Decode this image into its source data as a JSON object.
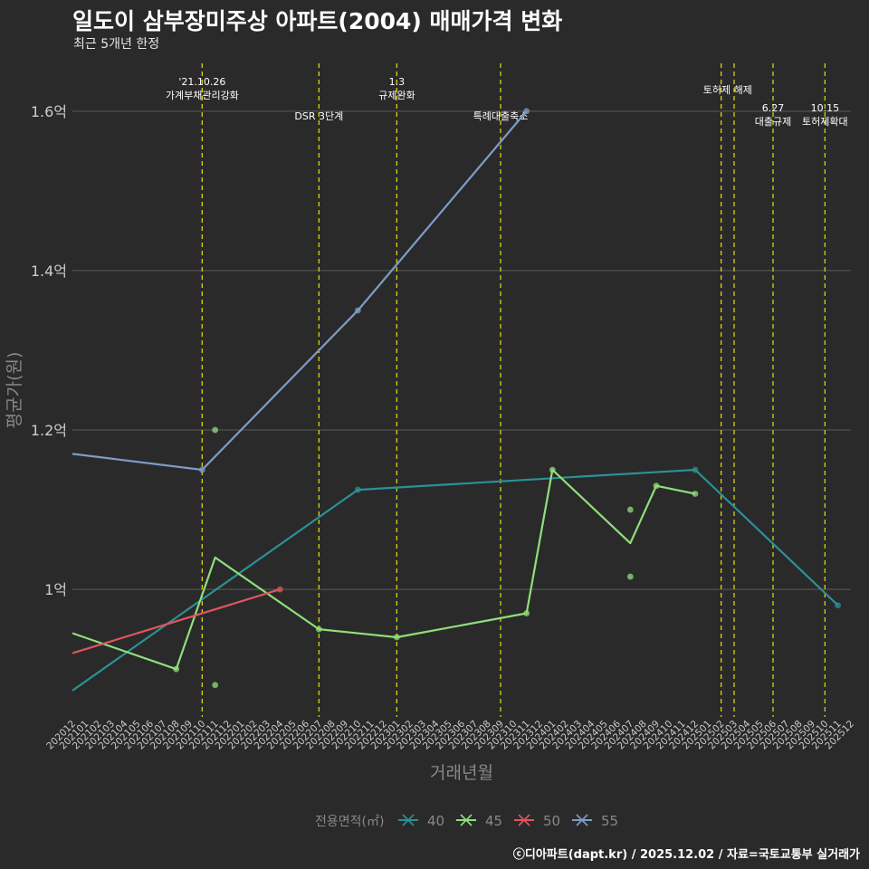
{
  "title": "일도이 삼부장미주상 아파트(2004) 매매가격 변화",
  "subtitle": "최근 5개년 한정",
  "caption": "ⓒ디아파트(dapt.kr) / 2025.12.02 / 자료=국토교통부 실거래가",
  "colors": {
    "background": "#2a2a2b",
    "grid": "#5a5a5a",
    "event_line": "#d4d40f",
    "axis_text": "#cccccc",
    "axis_title": "#888888",
    "s40": "#2a9296",
    "s45": "#8fe07a",
    "s50": "#e0555f",
    "s55": "#7e9cc8"
  },
  "chart_data": {
    "type": "line",
    "title": "일도이 삼부장미주상 아파트(2004) 매매가격 변화",
    "xlabel": "거래년월",
    "ylabel": "평균가(원)",
    "ylim": [
      0.84,
      1.66
    ],
    "yticks": [
      1.0,
      1.2,
      1.4,
      1.6
    ],
    "ytick_labels": [
      "1억",
      "1.2억",
      "1.4억",
      "1.6억"
    ],
    "categories": [
      "202012",
      "202101",
      "202102",
      "202103",
      "202104",
      "202105",
      "202106",
      "202107",
      "202108",
      "202109",
      "202110",
      "202111",
      "202112",
      "202201",
      "202202",
      "202203",
      "202204",
      "202205",
      "202206",
      "202207",
      "202208",
      "202209",
      "202210",
      "202211",
      "202212",
      "202301",
      "202302",
      "202303",
      "202304",
      "202305",
      "202306",
      "202307",
      "202308",
      "202309",
      "202310",
      "202311",
      "202312",
      "202401",
      "202402",
      "202403",
      "202404",
      "202405",
      "202406",
      "202407",
      "202408",
      "202409",
      "202410",
      "202411",
      "202412",
      "202501",
      "202502",
      "202503",
      "202504",
      "202505",
      "202506",
      "202507",
      "202508",
      "202509",
      "202510",
      "202511",
      "202512"
    ],
    "tick_labels": [
      "202012",
      "202101",
      "202102",
      "202103",
      "202104",
      "202105",
      "202106",
      "202107",
      "202108",
      "202109",
      "202110",
      "202111",
      "202112",
      "202201",
      "202202",
      "202203",
      "202204",
      "202205",
      "202206",
      "202207",
      "202208",
      "202209",
      "202210",
      "202211",
      "202212",
      "202301",
      "202302",
      "202303",
      "202304",
      "202305",
      "202306",
      "202307",
      "202308",
      "202309",
      "202310",
      "202311",
      "202312",
      "202401",
      "202402",
      "202403",
      "202404",
      "202405",
      "202406",
      "202407",
      "202408",
      "202409",
      "202410",
      "202411",
      "202412",
      "202501",
      "202502",
      "202503",
      "202504",
      "202505",
      "202506",
      "202507",
      "202508",
      "202509",
      "202510",
      "202511",
      "202512"
    ],
    "legend_title": "전용면적(㎡)",
    "legend_position": "bottom",
    "series": [
      {
        "name": "40",
        "color_key": "s40",
        "line": [
          {
            "x": "202012",
            "y": 0.873
          },
          {
            "x": "202210",
            "y": 1.125
          },
          {
            "x": "202412",
            "y": 1.15
          },
          {
            "x": "202511",
            "y": 0.98
          }
        ],
        "points": [
          {
            "x": "202210",
            "y": 1.125
          },
          {
            "x": "202412",
            "y": 1.15
          },
          {
            "x": "202511",
            "y": 0.98
          }
        ]
      },
      {
        "name": "45",
        "color_key": "s45",
        "line": [
          {
            "x": "202012",
            "y": 0.945
          },
          {
            "x": "202108",
            "y": 0.9
          },
          {
            "x": "202111",
            "y": 1.04
          },
          {
            "x": "202207",
            "y": 0.95
          },
          {
            "x": "202301",
            "y": 0.94
          },
          {
            "x": "202311",
            "y": 0.97
          },
          {
            "x": "202401",
            "y": 1.15
          },
          {
            "x": "202407",
            "y": 1.058
          },
          {
            "x": "202409",
            "y": 1.13
          },
          {
            "x": "202412",
            "y": 1.12
          }
        ],
        "points": [
          {
            "x": "202108",
            "y": 0.9
          },
          {
            "x": "202111",
            "y": 1.2
          },
          {
            "x": "202111",
            "y": 0.88
          },
          {
            "x": "202207",
            "y": 0.95
          },
          {
            "x": "202301",
            "y": 0.94
          },
          {
            "x": "202311",
            "y": 0.97
          },
          {
            "x": "202401",
            "y": 1.15
          },
          {
            "x": "202407",
            "y": 1.1
          },
          {
            "x": "202407",
            "y": 1.016
          },
          {
            "x": "202409",
            "y": 1.13
          },
          {
            "x": "202412",
            "y": 1.12
          }
        ]
      },
      {
        "name": "50",
        "color_key": "s50",
        "line": [
          {
            "x": "202012",
            "y": 0.92
          },
          {
            "x": "202204",
            "y": 1.0
          }
        ],
        "points": [
          {
            "x": "202204",
            "y": 1.0
          }
        ]
      },
      {
        "name": "55",
        "color_key": "s55",
        "line": [
          {
            "x": "202012",
            "y": 1.17
          },
          {
            "x": "202110",
            "y": 1.15
          },
          {
            "x": "202210",
            "y": 1.35
          },
          {
            "x": "202311",
            "y": 1.6
          }
        ],
        "points": [
          {
            "x": "202110",
            "y": 1.15
          },
          {
            "x": "202210",
            "y": 1.35
          },
          {
            "x": "202311",
            "y": 1.6
          }
        ]
      }
    ],
    "events": [
      {
        "x": "202110",
        "labels": [
          "'21.10.26",
          "가계부채관리강화"
        ],
        "tier": 1
      },
      {
        "x": "202207",
        "labels": [
          "DSR 3단계"
        ],
        "tier": 3
      },
      {
        "x": "202301",
        "labels": [
          "1.3",
          "규제완화"
        ],
        "tier": 1
      },
      {
        "x": "202309",
        "labels": [
          "특례대출축소"
        ],
        "tier": 3
      },
      {
        "x": "202502",
        "labels": [
          "토허제 해제"
        ],
        "tier": 2,
        "anchor_offset": 0.5
      },
      {
        "x": "202503",
        "labels": [],
        "tier": 0
      },
      {
        "x": "202506",
        "labels": [
          "6.27",
          "대출규제"
        ],
        "tier": 4
      },
      {
        "x": "202510",
        "labels": [
          "10.15",
          "토허제확대"
        ],
        "tier": 4
      }
    ]
  }
}
